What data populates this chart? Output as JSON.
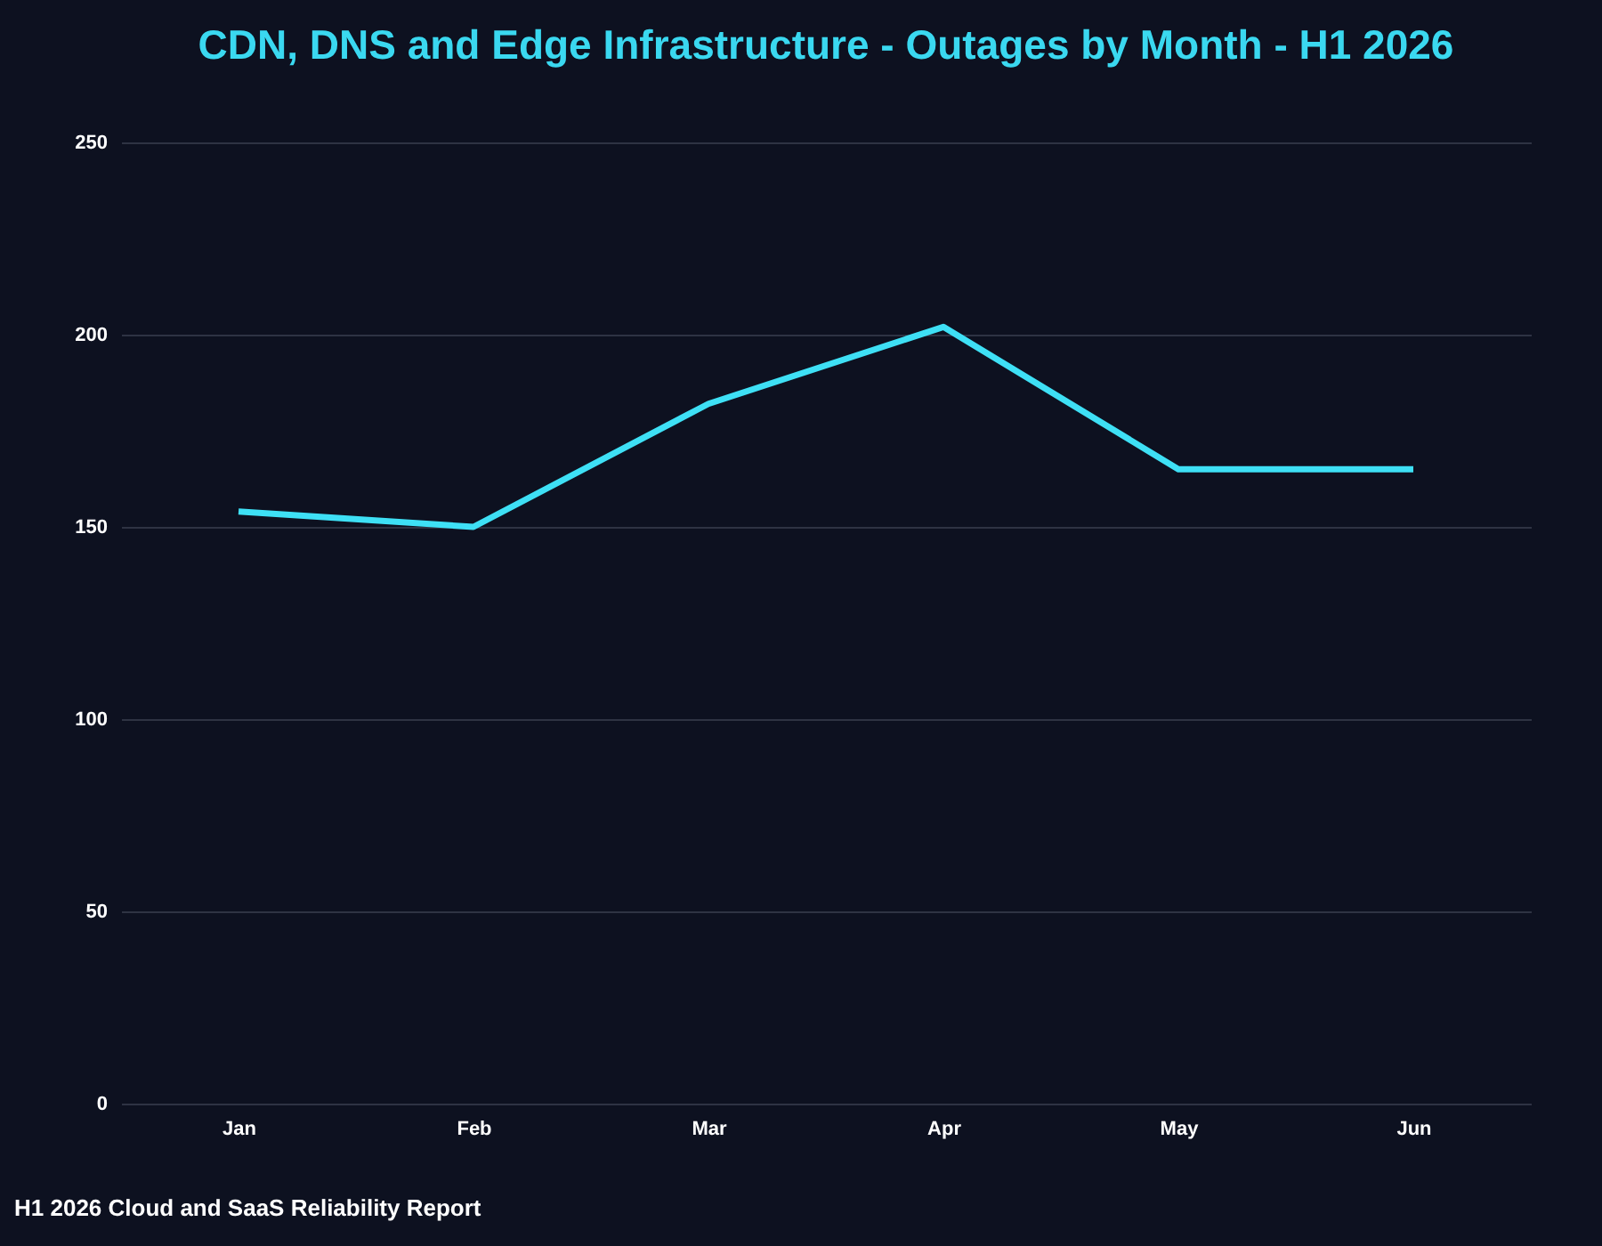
{
  "chart_data": {
    "type": "line",
    "title": "CDN, DNS and Edge Infrastructure - Outages by Month - H1 2026",
    "categories": [
      "Jan",
      "Feb",
      "Mar",
      "Apr",
      "May",
      "Jun"
    ],
    "series": [
      {
        "color": "#3ee0f5",
        "values": [
          154,
          150,
          182,
          202,
          165,
          165
        ]
      }
    ],
    "ylim": [
      0,
      250
    ],
    "yticks": [
      0,
      50,
      100,
      150,
      200,
      250
    ],
    "grid": "y",
    "marker": "none",
    "line_style": "solid",
    "annotations": [
      "H1 2026 Cloud and SaaS Reliability Report"
    ]
  }
}
